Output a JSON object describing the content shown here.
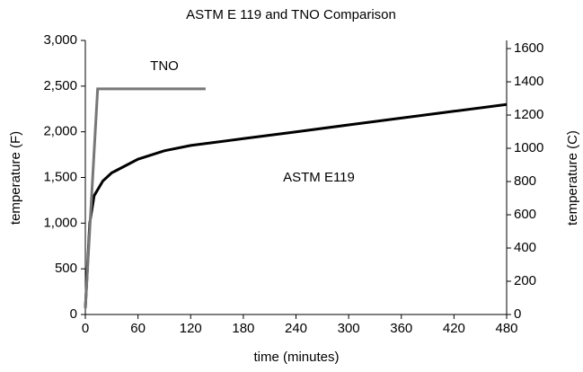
{
  "chart_data": {
    "type": "line",
    "title": "ASTM E 119 and TNO Comparison",
    "xlabel": "time (minutes)",
    "ylabel": "temperature (F)",
    "y2label": "temperature (C)",
    "xlim": [
      0,
      480
    ],
    "xticks": [
      0,
      60,
      120,
      180,
      240,
      300,
      360,
      420,
      480
    ],
    "ylim": [
      0,
      3000
    ],
    "yticks": [
      0,
      500,
      {
        "value": 1000,
        "label": "1,000"
      },
      {
        "value": 1500,
        "label": "1,500"
      },
      {
        "value": 2000,
        "label": "2,000"
      },
      {
        "value": 2500,
        "label": "2,500"
      },
      {
        "value": 3000,
        "label": "3,000"
      }
    ],
    "y2lim": [
      0,
      1649
    ],
    "y2ticks": [
      0,
      200,
      400,
      600,
      800,
      1000,
      1200,
      1400,
      1600
    ],
    "grid": false,
    "series": [
      {
        "name": "ASTM E119",
        "color": "#000000",
        "x": [
          0,
          5,
          10,
          20,
          30,
          60,
          90,
          120,
          180,
          240,
          300,
          360,
          420,
          480
        ],
        "values": [
          68,
          1000,
          1300,
          1462,
          1550,
          1700,
          1792,
          1850,
          1925,
          2000,
          2075,
          2150,
          2225,
          2300
        ]
      },
      {
        "name": "TNO",
        "color": "#777777",
        "x": [
          0,
          14,
          137
        ],
        "values": [
          68,
          2470,
          2470
        ]
      }
    ]
  }
}
